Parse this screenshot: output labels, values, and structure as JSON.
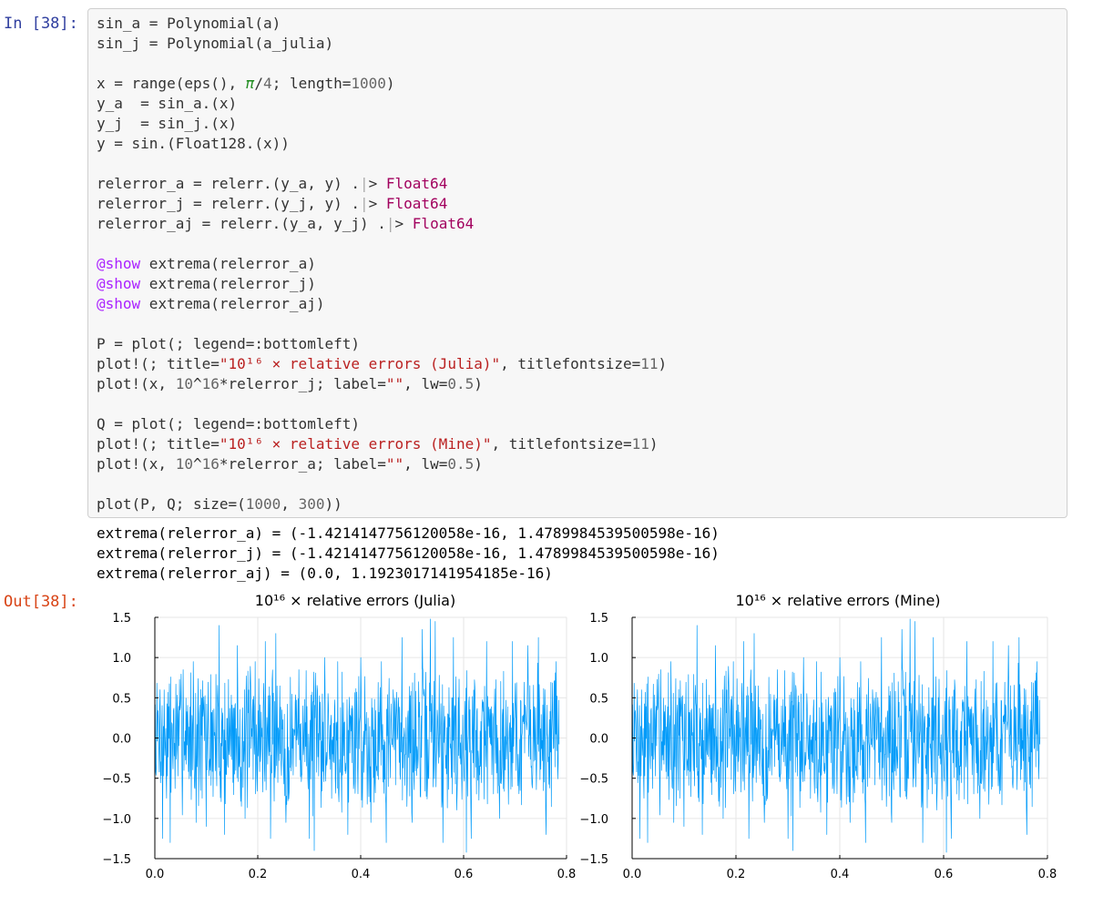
{
  "prompts": {
    "in": "In [38]:",
    "out": "Out[38]:"
  },
  "code_lines": [
    [
      {
        "t": "sin_a = Polynomial(a)",
        "c": ""
      }
    ],
    [
      {
        "t": "sin_j = Polynomial(a_julia)",
        "c": ""
      }
    ],
    [],
    [
      {
        "t": "x = range(eps(), ",
        "c": ""
      },
      {
        "t": "π",
        "c": "pi"
      },
      {
        "t": "/",
        "c": ""
      },
      {
        "t": "4",
        "c": "num"
      },
      {
        "t": "; length=",
        "c": ""
      },
      {
        "t": "1000",
        "c": "num"
      },
      {
        "t": ")",
        "c": ""
      }
    ],
    [
      {
        "t": "y_a  = sin_a.(x)",
        "c": ""
      }
    ],
    [
      {
        "t": "y_j  = sin_j.(x)",
        "c": ""
      }
    ],
    [
      {
        "t": "y = sin.(Float128.(x))",
        "c": ""
      }
    ],
    [],
    [
      {
        "t": "relerror_a = relerr.(y_a, y) .",
        "c": ""
      },
      {
        "t": "|",
        "c": "pipe"
      },
      {
        "t": "> ",
        "c": ""
      },
      {
        "t": "Float64",
        "c": "type"
      }
    ],
    [
      {
        "t": "relerror_j = relerr.(y_j, y) .",
        "c": ""
      },
      {
        "t": "|",
        "c": "pipe"
      },
      {
        "t": "> ",
        "c": ""
      },
      {
        "t": "Float64",
        "c": "type"
      }
    ],
    [
      {
        "t": "relerror_aj = relerr.(y_a, y_j) .",
        "c": ""
      },
      {
        "t": "|",
        "c": "pipe"
      },
      {
        "t": "> ",
        "c": ""
      },
      {
        "t": "Float64",
        "c": "type"
      }
    ],
    [],
    [
      {
        "t": "@show",
        "c": "macro"
      },
      {
        "t": " extrema(relerror_a)",
        "c": ""
      }
    ],
    [
      {
        "t": "@show",
        "c": "macro"
      },
      {
        "t": " extrema(relerror_j)",
        "c": ""
      }
    ],
    [
      {
        "t": "@show",
        "c": "macro"
      },
      {
        "t": " extrema(relerror_aj)",
        "c": ""
      }
    ],
    [],
    [
      {
        "t": "P = plot(; legend=:bottomleft)",
        "c": ""
      }
    ],
    [
      {
        "t": "plot!(; title=",
        "c": ""
      },
      {
        "t": "\"10¹⁶ × relative errors (Julia)\"",
        "c": "str"
      },
      {
        "t": ", titlefontsize=",
        "c": ""
      },
      {
        "t": "11",
        "c": "num"
      },
      {
        "t": ")",
        "c": ""
      }
    ],
    [
      {
        "t": "plot!(x, ",
        "c": ""
      },
      {
        "t": "10",
        "c": "num"
      },
      {
        "t": "^",
        "c": ""
      },
      {
        "t": "16",
        "c": "num"
      },
      {
        "t": "*relerror_j; label=",
        "c": ""
      },
      {
        "t": "\"\"",
        "c": "str"
      },
      {
        "t": ", lw=",
        "c": ""
      },
      {
        "t": "0.5",
        "c": "num"
      },
      {
        "t": ")",
        "c": ""
      }
    ],
    [],
    [
      {
        "t": "Q = plot(; legend=:bottomleft)",
        "c": ""
      }
    ],
    [
      {
        "t": "plot!(; title=",
        "c": ""
      },
      {
        "t": "\"10¹⁶ × relative errors (Mine)\"",
        "c": "str"
      },
      {
        "t": ", titlefontsize=",
        "c": ""
      },
      {
        "t": "11",
        "c": "num"
      },
      {
        "t": ")",
        "c": ""
      }
    ],
    [
      {
        "t": "plot!(x, ",
        "c": ""
      },
      {
        "t": "10",
        "c": "num"
      },
      {
        "t": "^",
        "c": ""
      },
      {
        "t": "16",
        "c": "num"
      },
      {
        "t": "*relerror_a; label=",
        "c": ""
      },
      {
        "t": "\"\"",
        "c": "str"
      },
      {
        "t": ", lw=",
        "c": ""
      },
      {
        "t": "0.5",
        "c": "num"
      },
      {
        "t": ")",
        "c": ""
      }
    ],
    [],
    [
      {
        "t": "plot(P, Q; size=(",
        "c": ""
      },
      {
        "t": "1000",
        "c": "num"
      },
      {
        "t": ", ",
        "c": ""
      },
      {
        "t": "300",
        "c": "num"
      },
      {
        "t": "))",
        "c": ""
      }
    ]
  ],
  "output_lines": [
    "extrema(relerror_a) = (-1.4214147756120058e-16, 1.4789984539500598e-16)",
    "extrema(relerror_j) = (-1.4214147756120058e-16, 1.4789984539500598e-16)",
    "extrema(relerror_aj) = (0.0, 1.1923017141954185e-16)"
  ],
  "colors": {
    "series": "#009af9",
    "prompt_in": "#303f9f",
    "prompt_out": "#d84315",
    "string": "#ba2121",
    "number": "#666666",
    "type": "#a2005e",
    "macro": "#aa22ff"
  },
  "chart_data": [
    {
      "type": "line",
      "title": "10¹⁶ × relative errors (Julia)",
      "xlabel": "",
      "ylabel": "",
      "xlim": [
        0.0,
        0.7854
      ],
      "ylim": [
        -1.5,
        1.5
      ],
      "xticks": [
        "0.0",
        "0.2",
        "0.4",
        "0.6",
        "0.8"
      ],
      "yticks": [
        "1.5",
        "1.0",
        "0.5",
        "0.0",
        "−0.5",
        "−1.0",
        "−1.5"
      ],
      "grid": true,
      "series": [
        {
          "n_points": 1000,
          "x_range": [
            0.0,
            0.7854
          ],
          "min": -1.4214,
          "max": 1.479,
          "peaks": [
            {
              "x": 0.01,
              "y": 0.6
            },
            {
              "x": 0.015,
              "y": -1.25
            },
            {
              "x": 0.03,
              "y": -1.3
            },
            {
              "x": 0.055,
              "y": 0.85
            },
            {
              "x": 0.075,
              "y": 0.95
            },
            {
              "x": 0.08,
              "y": -1.05
            },
            {
              "x": 0.1,
              "y": -1.1
            },
            {
              "x": 0.125,
              "y": 1.4
            },
            {
              "x": 0.135,
              "y": -1.2
            },
            {
              "x": 0.16,
              "y": 1.15
            },
            {
              "x": 0.175,
              "y": -1.0
            },
            {
              "x": 0.195,
              "y": 0.95
            },
            {
              "x": 0.215,
              "y": 1.2
            },
            {
              "x": 0.225,
              "y": -1.25
            },
            {
              "x": 0.235,
              "y": 1.3
            },
            {
              "x": 0.255,
              "y": -1.05
            },
            {
              "x": 0.28,
              "y": 0.85
            },
            {
              "x": 0.3,
              "y": -1.25
            },
            {
              "x": 0.31,
              "y": -1.4
            },
            {
              "x": 0.33,
              "y": 1.0
            },
            {
              "x": 0.355,
              "y": 0.95
            },
            {
              "x": 0.375,
              "y": -1.2
            },
            {
              "x": 0.4,
              "y": 1.0
            },
            {
              "x": 0.42,
              "y": -1.05
            },
            {
              "x": 0.44,
              "y": 0.95
            },
            {
              "x": 0.45,
              "y": -1.3
            },
            {
              "x": 0.48,
              "y": 1.25
            },
            {
              "x": 0.5,
              "y": -1.05
            },
            {
              "x": 0.52,
              "y": 1.35
            },
            {
              "x": 0.535,
              "y": 1.479
            },
            {
              "x": 0.545,
              "y": 1.45
            },
            {
              "x": 0.56,
              "y": -1.3
            },
            {
              "x": 0.58,
              "y": 1.25
            },
            {
              "x": 0.605,
              "y": -1.4214
            },
            {
              "x": 0.615,
              "y": -1.25
            },
            {
              "x": 0.645,
              "y": 1.2
            },
            {
              "x": 0.67,
              "y": -1.0
            },
            {
              "x": 0.695,
              "y": 1.2
            },
            {
              "x": 0.725,
              "y": 1.15
            },
            {
              "x": 0.745,
              "y": 1.25
            },
            {
              "x": 0.76,
              "y": -1.2
            },
            {
              "x": 0.78,
              "y": 0.95
            }
          ]
        }
      ]
    },
    {
      "type": "line",
      "title": "10¹⁶ × relative errors (Mine)",
      "xlabel": "",
      "ylabel": "",
      "xlim": [
        0.0,
        0.7854
      ],
      "ylim": [
        -1.5,
        1.5
      ],
      "xticks": [
        "0.0",
        "0.2",
        "0.4",
        "0.6",
        "0.8"
      ],
      "yticks": [
        "1.5",
        "1.0",
        "0.5",
        "0.0",
        "−0.5",
        "−1.0",
        "−1.5"
      ],
      "grid": true,
      "series": [
        {
          "n_points": 1000,
          "x_range": [
            0.0,
            0.7854
          ],
          "min": -1.4214,
          "max": 1.479,
          "peaks": [
            {
              "x": 0.01,
              "y": 0.6
            },
            {
              "x": 0.015,
              "y": -1.25
            },
            {
              "x": 0.03,
              "y": -1.3
            },
            {
              "x": 0.055,
              "y": 0.85
            },
            {
              "x": 0.075,
              "y": 0.95
            },
            {
              "x": 0.08,
              "y": -1.05
            },
            {
              "x": 0.1,
              "y": -1.1
            },
            {
              "x": 0.125,
              "y": 1.4
            },
            {
              "x": 0.135,
              "y": -1.2
            },
            {
              "x": 0.16,
              "y": 1.15
            },
            {
              "x": 0.175,
              "y": -1.0
            },
            {
              "x": 0.195,
              "y": 0.95
            },
            {
              "x": 0.215,
              "y": 1.2
            },
            {
              "x": 0.225,
              "y": -1.25
            },
            {
              "x": 0.235,
              "y": 1.3
            },
            {
              "x": 0.255,
              "y": -1.05
            },
            {
              "x": 0.28,
              "y": 0.85
            },
            {
              "x": 0.3,
              "y": -1.25
            },
            {
              "x": 0.31,
              "y": -1.4
            },
            {
              "x": 0.33,
              "y": 1.0
            },
            {
              "x": 0.355,
              "y": 0.95
            },
            {
              "x": 0.375,
              "y": -1.2
            },
            {
              "x": 0.4,
              "y": 1.0
            },
            {
              "x": 0.42,
              "y": -1.05
            },
            {
              "x": 0.44,
              "y": 0.95
            },
            {
              "x": 0.45,
              "y": -1.3
            },
            {
              "x": 0.48,
              "y": 1.25
            },
            {
              "x": 0.5,
              "y": -1.05
            },
            {
              "x": 0.52,
              "y": 1.35
            },
            {
              "x": 0.535,
              "y": 1.479
            },
            {
              "x": 0.545,
              "y": 1.45
            },
            {
              "x": 0.56,
              "y": -1.3
            },
            {
              "x": 0.58,
              "y": 1.25
            },
            {
              "x": 0.605,
              "y": -1.4214
            },
            {
              "x": 0.615,
              "y": -1.25
            },
            {
              "x": 0.645,
              "y": 1.2
            },
            {
              "x": 0.67,
              "y": -1.0
            },
            {
              "x": 0.695,
              "y": 1.2
            },
            {
              "x": 0.725,
              "y": 1.15
            },
            {
              "x": 0.745,
              "y": 1.25
            },
            {
              "x": 0.76,
              "y": -1.2
            },
            {
              "x": 0.78,
              "y": 0.95
            }
          ]
        }
      ]
    }
  ]
}
